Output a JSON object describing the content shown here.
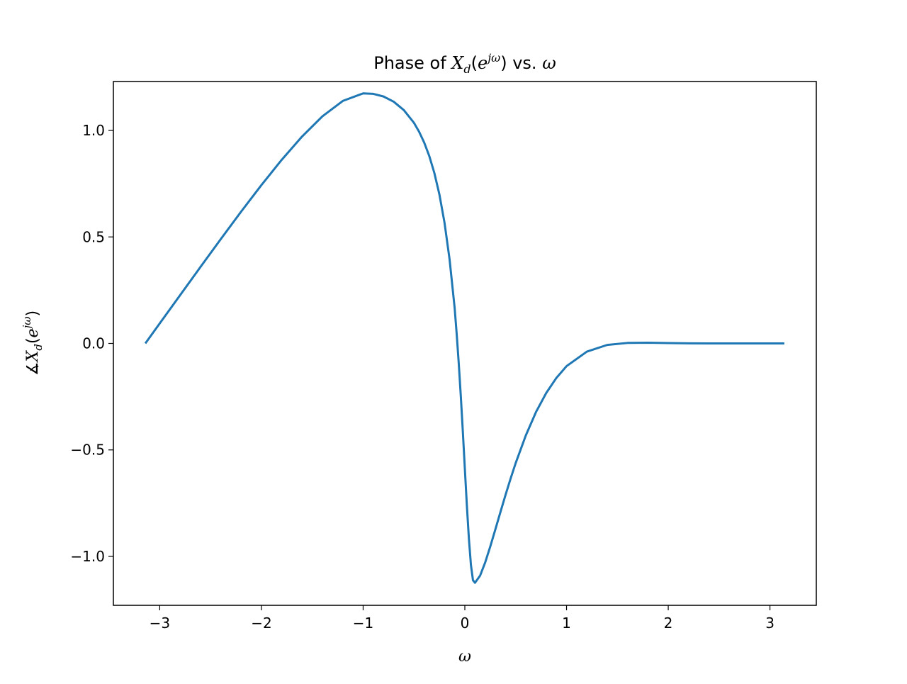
{
  "chart_data": {
    "type": "line",
    "title": {
      "prefix": "Phase of ",
      "var": "X",
      "sub": "d",
      "open": "(",
      "base": "e",
      "sup": "jω",
      "close": ")",
      "mid": " vs. ",
      "tail": "ω"
    },
    "xlabel": "ω",
    "ylabel": {
      "angle": "∡",
      "var": "X",
      "sub": "d",
      "open": "(",
      "base": "e",
      "sup": "jω",
      "close": ")"
    },
    "xlim": [
      -3.4558,
      3.4558
    ],
    "ylim": [
      -1.2297,
      1.2297
    ],
    "xticks": [
      -3,
      -2,
      -1,
      0,
      1,
      2,
      3
    ],
    "xtick_labels": [
      "−3",
      "−2",
      "−1",
      "0",
      "1",
      "2",
      "3"
    ],
    "yticks": [
      -1.0,
      -0.5,
      0.0,
      0.5,
      1.0
    ],
    "ytick_labels": [
      "−1.0",
      "−0.5",
      "0.0",
      "0.5",
      "1.0"
    ],
    "grid": false,
    "series": [
      {
        "color": "#1f77b4",
        "x": [
          -3.1416,
          -3.0,
          -2.8,
          -2.6,
          -2.4,
          -2.2,
          -2.0,
          -1.8,
          -1.6,
          -1.4,
          -1.2,
          -1.0,
          -0.9,
          -0.8,
          -0.7,
          -0.6,
          -0.5,
          -0.45,
          -0.4,
          -0.35,
          -0.3,
          -0.25,
          -0.2,
          -0.15,
          -0.1,
          -0.08,
          -0.06,
          -0.04,
          -0.02,
          0.0,
          0.02,
          0.04,
          0.06,
          0.08,
          0.1,
          0.15,
          0.2,
          0.25,
          0.3,
          0.35,
          0.4,
          0.45,
          0.5,
          0.6,
          0.7,
          0.8,
          0.9,
          1.0,
          1.2,
          1.4,
          1.6,
          1.8,
          2.0,
          2.2,
          2.4,
          2.6,
          2.8,
          3.0,
          3.1416
        ],
        "y": [
          0.0,
          0.0938,
          0.2262,
          0.3585,
          0.4898,
          0.6187,
          0.7436,
          0.8624,
          0.9716,
          1.0663,
          1.1385,
          1.174,
          1.1718,
          1.1594,
          1.1351,
          1.0956,
          1.0356,
          0.9942,
          0.9434,
          0.8803,
          0.8008,
          0.6993,
          0.5675,
          0.3945,
          0.1655,
          0.0431,
          -0.0928,
          -0.2445,
          -0.4112,
          -0.5873,
          -0.7613,
          -0.9173,
          -1.0407,
          -1.112,
          -1.1238,
          -1.0904,
          -1.0286,
          -0.9537,
          -0.8734,
          -0.7918,
          -0.7116,
          -0.6345,
          -0.5618,
          -0.4313,
          -0.3219,
          -0.2329,
          -0.1621,
          -0.1067,
          -0.0384,
          -0.0071,
          0.0023,
          0.0032,
          0.0016,
          0.0005,
          0.0001,
          0.0,
          0.0,
          0.0,
          0.0
        ]
      }
    ]
  }
}
